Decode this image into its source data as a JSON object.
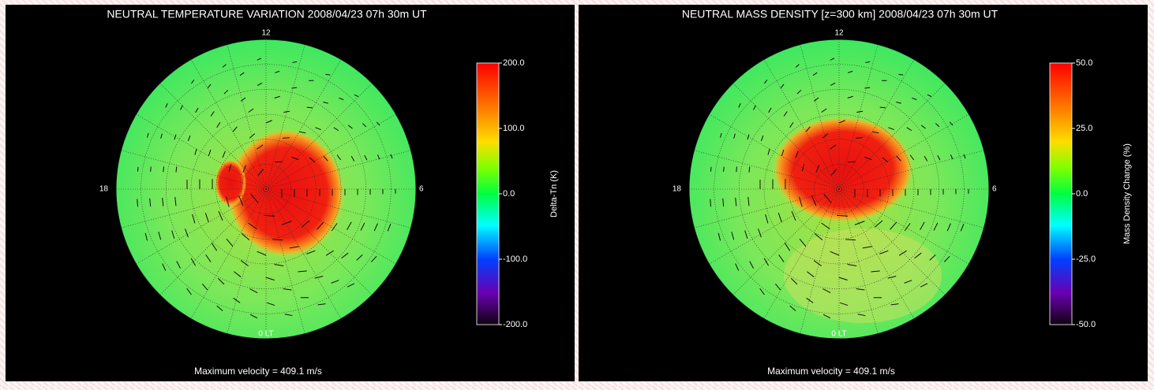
{
  "panels": [
    {
      "title": "NEUTRAL TEMPERATURE VARIATION  2008/04/23 07h 30m UT",
      "labels": {
        "top": "12",
        "left": "18",
        "right": "6",
        "bottom": "0 LT"
      },
      "colorbar": {
        "label": "Delta-Tn (K)",
        "ticks": [
          "200.0",
          "100.0",
          "0.0",
          "-100.0",
          "-200.0"
        ]
      },
      "footer": "Maximum velocity =  409.1 m/s"
    },
    {
      "title": "NEUTRAL MASS DENSITY [z=300 km]  2008/04/23 07h 30m UT",
      "labels": {
        "top": "12",
        "left": "18",
        "right": "6",
        "bottom": "0 LT"
      },
      "colorbar": {
        "label": "Mass Density Change (%)",
        "ticks": [
          "50.0",
          "25.0",
          "0.0",
          "-25.0",
          "-50.0"
        ]
      },
      "footer": "Maximum velocity =  409.1 m/s"
    }
  ]
}
